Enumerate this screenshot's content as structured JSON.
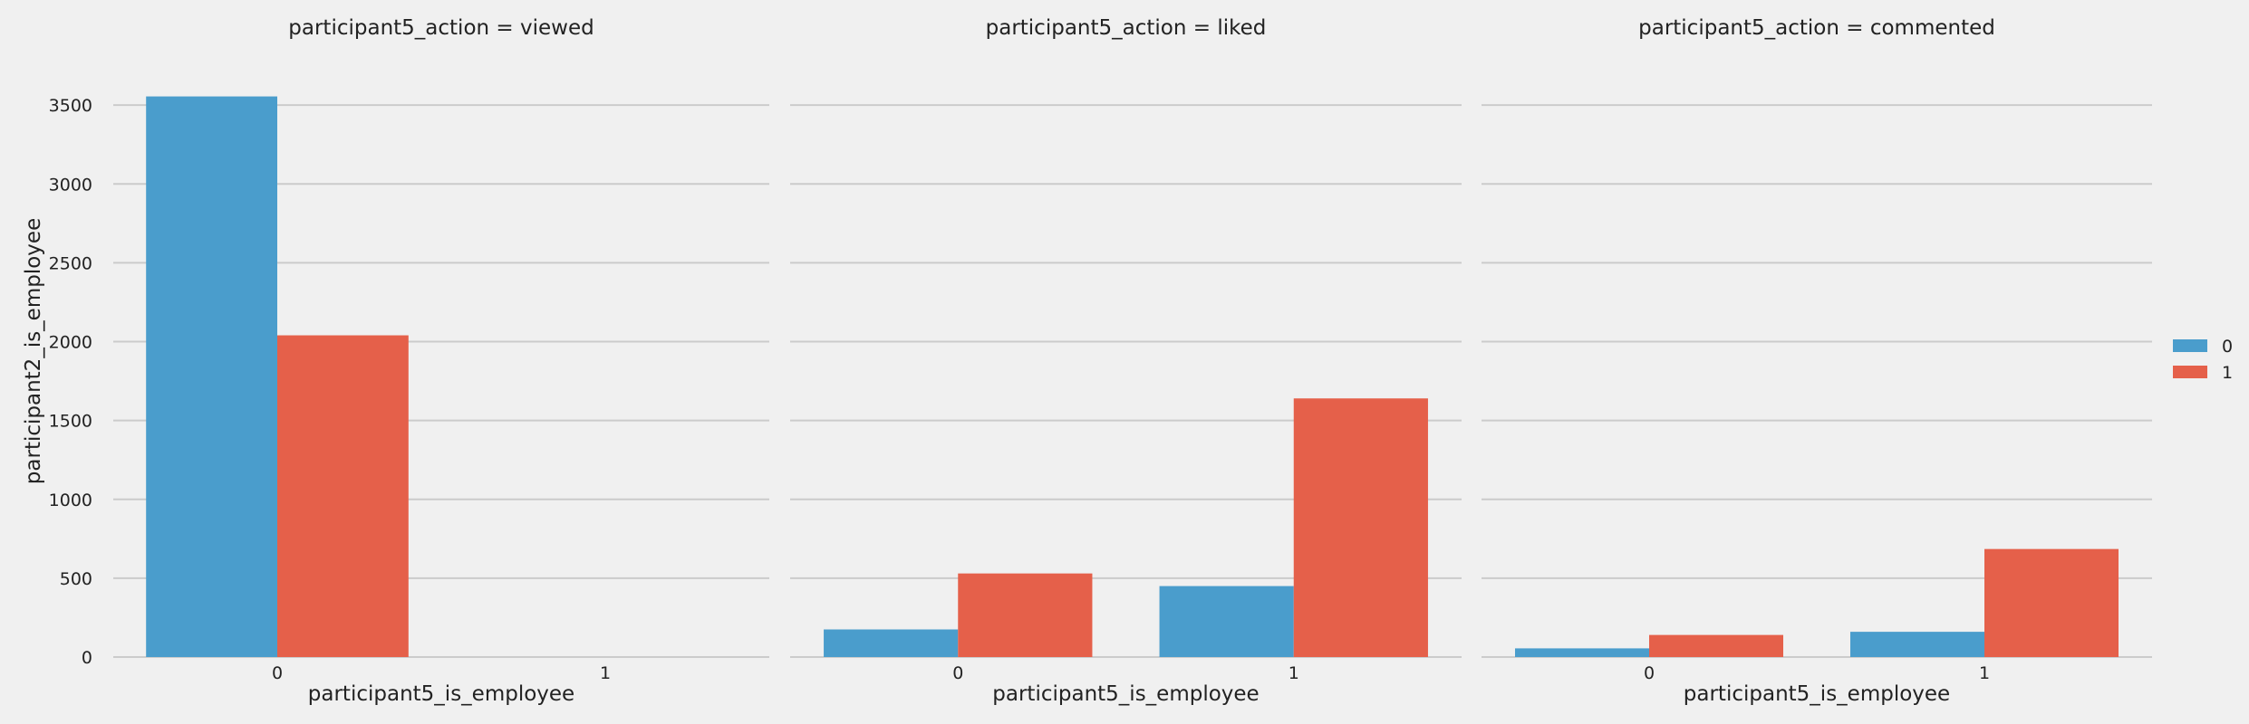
{
  "chart_data": {
    "type": "bar",
    "background": "#f0f0f0",
    "grid": true,
    "legend_placement": "right",
    "ylabel": "participant2_is_employee",
    "ylim": [
      0,
      3650
    ],
    "yticks": [
      0,
      500,
      1000,
      1500,
      2000,
      2500,
      3000,
      3500
    ],
    "legend": [
      {
        "label": "0",
        "color": "#4a9dcc"
      },
      {
        "label": "1",
        "color": "#e5604a"
      }
    ],
    "panels": [
      {
        "title": "participant5_action = viewed",
        "xlabel": "participant5_is_employee",
        "categories": [
          "0",
          "1"
        ],
        "series": [
          {
            "name": "0",
            "values": [
              3555,
              0
            ]
          },
          {
            "name": "1",
            "values": [
              2040,
              0
            ]
          }
        ]
      },
      {
        "title": "participant5_action = liked",
        "xlabel": "participant5_is_employee",
        "categories": [
          "0",
          "1"
        ],
        "series": [
          {
            "name": "0",
            "values": [
              175,
              450
            ]
          },
          {
            "name": "1",
            "values": [
              530,
              1640
            ]
          }
        ]
      },
      {
        "title": "participant5_action = commented",
        "xlabel": "participant5_is_employee",
        "categories": [
          "0",
          "1"
        ],
        "series": [
          {
            "name": "0",
            "values": [
              55,
              160
            ]
          },
          {
            "name": "1",
            "values": [
              140,
              685
            ]
          }
        ]
      }
    ]
  }
}
